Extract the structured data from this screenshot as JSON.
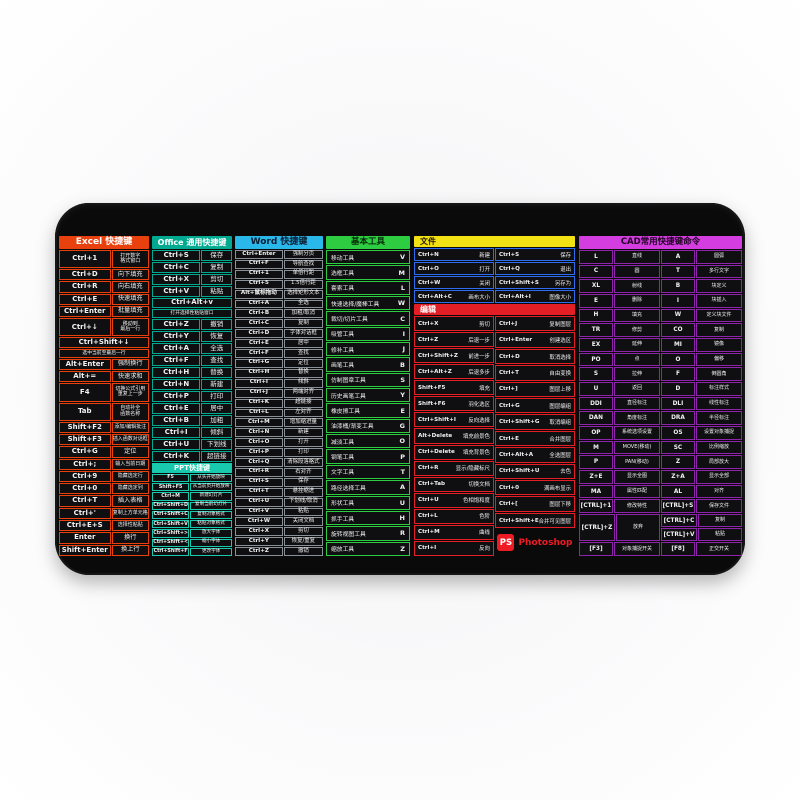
{
  "colors": {
    "excel": "#e8410e",
    "office": "#00a98f",
    "word": "#2ab7ea",
    "word_border": "#8a9097",
    "tools": "#2ecc40",
    "ps_file_header": "#f2e113",
    "ps_file_border": "#2d6cf0",
    "ps_edit": "#e31e25",
    "cad": "#d43de0",
    "cad_border": "#8e24aa",
    "ppt": "#18c9ad",
    "logo_red": "#ed1c24"
  },
  "pad": {
    "columns": {
      "excel": {
        "title": "Excel 快捷键",
        "rows": [
          {
            "key": "Ctrl+1",
            "desc": "打开数字\n格式窗口",
            "tall": true,
            "small": true
          },
          {
            "key": "Ctrl+D",
            "desc": "向下填充"
          },
          {
            "key": "Ctrl+R",
            "desc": "向右填充"
          },
          {
            "key": "Ctrl+E",
            "desc": "快速填充"
          },
          {
            "key": "Ctrl+Enter",
            "desc": "批量填充"
          },
          {
            "key": "Ctrl+↓",
            "desc": "移动到\n最后一行",
            "tall": true,
            "small": true
          },
          {
            "key": "Ctrl+Shift+↓",
            "sub": "选中当前至最后一行",
            "wide": true
          },
          {
            "key": "Alt+Enter",
            "desc": "强制换行"
          },
          {
            "key": "Alt+=",
            "desc": "快速求和"
          },
          {
            "key": "F4",
            "desc": "切换公式引用\n重复上一步",
            "tall": true,
            "small": true
          },
          {
            "key": "Tab",
            "desc": "自动补全\n函数名称",
            "tall": true,
            "small": true
          },
          {
            "key": "Shift+F2",
            "desc": "添加/编辑批注",
            "small": true
          },
          {
            "key": "Shift+F3",
            "desc": "插入函数对话框",
            "small": true
          },
          {
            "key": "Ctrl+G",
            "desc": "定位"
          },
          {
            "key": "Ctrl+;",
            "desc": "输入当前日期",
            "small": true
          },
          {
            "key": "Ctrl+9",
            "desc": "隐藏选定行",
            "small": true
          },
          {
            "key": "Ctrl+0",
            "desc": "隐藏选定列",
            "small": true
          },
          {
            "key": "Ctrl+T",
            "desc": "插入表格"
          },
          {
            "key": "Ctrl+'",
            "desc": "复制上方单元格",
            "small": true
          },
          {
            "key": "Ctrl+E+S",
            "desc": "选择性粘贴",
            "small": true
          },
          {
            "key": "Enter",
            "desc": "换行"
          },
          {
            "key": "Shift+Enter",
            "desc": "换上行"
          }
        ]
      },
      "office": {
        "title": "Office 通用快捷键",
        "rows": [
          {
            "key": "Ctrl+S",
            "desc": "保存"
          },
          {
            "key": "Ctrl+C",
            "desc": "复制"
          },
          {
            "key": "Ctrl+X",
            "desc": "剪切"
          },
          {
            "key": "Ctrl+V",
            "desc": "粘贴"
          },
          {
            "key": "Ctrl+Alt+v",
            "sub": "打开选择性粘贴窗口",
            "wide": true
          },
          {
            "key": "Ctrl+Z",
            "desc": "撤销"
          },
          {
            "key": "Ctrl+Y",
            "desc": "恢复"
          },
          {
            "key": "Ctrl+A",
            "desc": "全选"
          },
          {
            "key": "Ctrl+F",
            "desc": "查找"
          },
          {
            "key": "Ctrl+H",
            "desc": "替换"
          },
          {
            "key": "Ctrl+N",
            "desc": "新建"
          },
          {
            "key": "Ctrl+P",
            "desc": "打印"
          },
          {
            "key": "Ctrl+E",
            "desc": "居中"
          },
          {
            "key": "Ctrl+B",
            "desc": "加粗"
          },
          {
            "key": "Ctrl+I",
            "desc": "倾斜"
          },
          {
            "key": "Ctrl+U",
            "desc": "下划线"
          },
          {
            "key": "Ctrl+K",
            "desc": "超链接"
          }
        ],
        "ppt": {
          "title": "PPT快捷键",
          "rows": [
            {
              "key": "F5",
              "desc": "从头开始放映"
            },
            {
              "key": "Shift+F5",
              "desc": "从当前页开始放映"
            },
            {
              "key": "Ctrl+M",
              "desc": "新建幻灯片"
            },
            {
              "key": "Ctrl+Shift+D",
              "desc": "复制当前幻灯片"
            },
            {
              "key": "Ctrl+Shift+C",
              "desc": "复制对象格式"
            },
            {
              "key": "Ctrl+Shift+V",
              "desc": "粘贴对象格式"
            },
            {
              "key": "Ctrl+Shift+>",
              "desc": "放大字体"
            },
            {
              "key": "Ctrl+Shift+<",
              "desc": "缩小字体"
            },
            {
              "key": "Ctrl+Shift+F",
              "desc": "更改字体"
            }
          ]
        }
      },
      "word": {
        "title": "Word 快捷键",
        "rows": [
          {
            "key": "Ctrl+Enter",
            "desc": "强制分页"
          },
          {
            "key": "Ctrl+F",
            "desc": "导航查找"
          },
          {
            "key": "Ctrl+1",
            "desc": "单倍行距"
          },
          {
            "key": "Ctrl+5",
            "desc": "1.5倍行距"
          },
          {
            "key": "Alt+鼠标拖动",
            "desc": "选择矩形文本"
          },
          {
            "key": "Ctrl+A",
            "desc": "全选"
          },
          {
            "key": "Ctrl+B",
            "desc": "加粗/取消"
          },
          {
            "key": "Ctrl+C",
            "desc": "复制"
          },
          {
            "key": "Ctrl+D",
            "desc": "字体对话框"
          },
          {
            "key": "Ctrl+E",
            "desc": "居中"
          },
          {
            "key": "Ctrl+F",
            "desc": "查找"
          },
          {
            "key": "Ctrl+G",
            "desc": "定位"
          },
          {
            "key": "Ctrl+H",
            "desc": "替换"
          },
          {
            "key": "Ctrl+I",
            "desc": "倾斜"
          },
          {
            "key": "Ctrl+J",
            "desc": "两端对齐"
          },
          {
            "key": "Ctrl+K",
            "desc": "超链接"
          },
          {
            "key": "Ctrl+L",
            "desc": "左对齐"
          },
          {
            "key": "Ctrl+M",
            "desc": "增加缩进量"
          },
          {
            "key": "Ctrl+N",
            "desc": "新建"
          },
          {
            "key": "Ctrl+O",
            "desc": "打开"
          },
          {
            "key": "Ctrl+P",
            "desc": "打印"
          },
          {
            "key": "Ctrl+Q",
            "desc": "清除段落格式"
          },
          {
            "key": "Ctrl+R",
            "desc": "右对齐"
          },
          {
            "key": "Ctrl+S",
            "desc": "保存"
          },
          {
            "key": "Ctrl+T",
            "desc": "悬挂缩进"
          },
          {
            "key": "Ctrl+U",
            "desc": "下划线/取消"
          },
          {
            "key": "Ctrl+V",
            "desc": "粘贴"
          },
          {
            "key": "Ctrl+W",
            "desc": "关闭文档"
          },
          {
            "key": "Ctrl+X",
            "desc": "剪切"
          },
          {
            "key": "Ctrl+Y",
            "desc": "恢复/重复"
          },
          {
            "key": "Ctrl+Z",
            "desc": "撤销"
          }
        ]
      },
      "tools": {
        "title": "基本工具",
        "rows": [
          {
            "name": "移动工具",
            "key": "V"
          },
          {
            "name": "选框工具",
            "key": "M"
          },
          {
            "name": "套索工具",
            "key": "L"
          },
          {
            "name": "快速选择/魔棒工具",
            "key": "W"
          },
          {
            "name": "裁切/切片工具",
            "key": "C"
          },
          {
            "name": "吸管工具",
            "key": "I"
          },
          {
            "name": "修补工具",
            "key": "J"
          },
          {
            "name": "画笔工具",
            "key": "B"
          },
          {
            "name": "仿制图章工具",
            "key": "S"
          },
          {
            "name": "历史画笔工具",
            "key": "Y"
          },
          {
            "name": "橡皮擦工具",
            "key": "E"
          },
          {
            "name": "油漆桶/渐变工具",
            "key": "G"
          },
          {
            "name": "减淡工具",
            "key": "O"
          },
          {
            "name": "钢笔工具",
            "key": "P"
          },
          {
            "name": "文字工具",
            "key": "T"
          },
          {
            "name": "路径选择工具",
            "key": "A"
          },
          {
            "name": "形状工具",
            "key": "U"
          },
          {
            "name": "抓手工具",
            "key": "H"
          },
          {
            "name": "旋转视图工具",
            "key": "R"
          },
          {
            "name": "缩放工具",
            "key": "Z"
          }
        ]
      },
      "ps": {
        "file": {
          "title": "文件",
          "rows": [
            [
              {
                "key": "Ctrl+N",
                "desc": "新建"
              },
              {
                "key": "Ctrl+S",
                "desc": "保存"
              }
            ],
            [
              {
                "key": "Ctrl+O",
                "desc": "打开"
              },
              {
                "key": "Ctrl+Q",
                "desc": "退出"
              }
            ],
            [
              {
                "key": "Ctrl+W",
                "desc": "关闭"
              },
              {
                "key": "Ctrl+Shift+S",
                "desc": "另存为"
              }
            ],
            [
              {
                "key": "Ctrl+Alt+C",
                "desc": "画布大小"
              },
              {
                "key": "Ctrl+Alt+I",
                "desc": "图像大小"
              }
            ]
          ]
        },
        "edit": {
          "title": "编辑",
          "left": [
            {
              "key": "Ctrl+X",
              "desc": "剪切"
            },
            {
              "key": "Ctrl+Z",
              "desc": "后退一步"
            },
            {
              "key": "Ctrl+Shift+Z",
              "desc": "前进一步"
            },
            {
              "key": "Ctrl+Alt+Z",
              "desc": "后退多步"
            },
            {
              "key": "Shift+F5",
              "desc": "填充"
            },
            {
              "key": "Shift+F6",
              "desc": "羽化选区"
            },
            {
              "key": "Ctrl+Shift+I",
              "desc": "反向选择"
            },
            {
              "key": "Alt+Delete",
              "desc": "填充前景色"
            },
            {
              "key": "Ctrl+Delete",
              "desc": "填充背景色"
            },
            {
              "key": "Ctrl+R",
              "desc": "显示/隐藏标尺"
            },
            {
              "key": "Ctrl+Tab",
              "desc": "切换文档"
            },
            {
              "key": "Ctrl+U",
              "desc": "色相饱和度"
            },
            {
              "key": "Ctrl+L",
              "desc": "色阶"
            },
            {
              "key": "Ctrl+M",
              "desc": "曲线"
            },
            {
              "key": "Ctrl+I",
              "desc": "反向"
            }
          ],
          "right": [
            {
              "key": "Ctrl+J",
              "desc": "复制图层"
            },
            {
              "key": "Ctrl+Enter",
              "desc": "创建选区"
            },
            {
              "key": "Ctrl+D",
              "desc": "取消选择"
            },
            {
              "key": "Ctrl+T",
              "desc": "自由变换"
            },
            {
              "key": "Ctrl+]",
              "desc": "图层上移"
            },
            {
              "key": "Ctrl+G",
              "desc": "图层编组"
            },
            {
              "key": "Ctrl+Shift+G",
              "desc": "取消编组"
            },
            {
              "key": "Ctrl+E",
              "desc": "合并图层"
            },
            {
              "key": "Ctrl+Alt+A",
              "desc": "全选图层"
            },
            {
              "key": "Ctrl+Shift+U",
              "desc": "去色"
            },
            {
              "key": "Ctrl+0",
              "desc": "满画布显示"
            },
            {
              "key": "Ctrl+[",
              "desc": "图层下移"
            },
            {
              "key": "Ctrl+Shift+E",
              "desc": "合并可见图层"
            }
          ]
        },
        "logo": {
          "badge": "PS",
          "text": "Photoshop"
        }
      },
      "cad": {
        "title": "CAD常用快捷键命令",
        "rows": [
          {
            "c": [
              "L",
              "直线",
              "A",
              "圆弧"
            ]
          },
          {
            "c": [
              "C",
              "圆",
              "T",
              "多行文字"
            ]
          },
          {
            "c": [
              "XL",
              "射线",
              "B",
              "块定义"
            ]
          },
          {
            "c": [
              "E",
              "删除",
              "I",
              "块插入"
            ]
          },
          {
            "c": [
              "H",
              "填充",
              "W",
              "定义块文件"
            ]
          },
          {
            "c": [
              "TR",
              "修剪",
              "CO",
              "复制"
            ]
          },
          {
            "c": [
              "EX",
              "延伸",
              "MI",
              "镜像"
            ]
          },
          {
            "c": [
              "PO",
              "点",
              "O",
              "偏移"
            ]
          },
          {
            "c": [
              "S",
              "拉伸",
              "F",
              "倒圆角"
            ]
          },
          {
            "c": [
              "U",
              "返回",
              "D",
              "标注样式"
            ]
          },
          {
            "c": [
              "DDI",
              "直径标注",
              "DLI",
              "线性标注"
            ]
          },
          {
            "c": [
              "DAN",
              "角度标注",
              "DRA",
              "半径标注"
            ]
          },
          {
            "c": [
              "OP",
              "系统选项设置",
              "OS",
              "设置对象捕捉"
            ]
          },
          {
            "c": [
              "M",
              "MOVE(移动)",
              "SC",
              "比例缩放"
            ]
          },
          {
            "c": [
              "P",
              "PAN(移动)",
              "Z",
              "局部放大"
            ]
          },
          {
            "c": [
              "Z+E",
              "显示全图",
              "Z+A",
              "显示全部"
            ]
          },
          {
            "c": [
              "MA",
              "属性匹配",
              "AL",
              "对齐"
            ]
          },
          {
            "c": [
              "[CTRL]+1",
              "修改特性",
              "[CTRL]+S",
              "保存文件"
            ]
          },
          {
            "special": {
              "left_key": "[CTRL]+Z",
              "left_desc": "放弃",
              "right": [
                [
                  "[CTRL]+C",
                  "复制"
                ],
                [
                  "[CTRL]+V",
                  "粘贴"
                ]
              ]
            }
          },
          {
            "c": [
              "[F3]",
              "对象捕捉开关",
              "[F8]",
              "正交开关"
            ]
          }
        ]
      }
    }
  }
}
